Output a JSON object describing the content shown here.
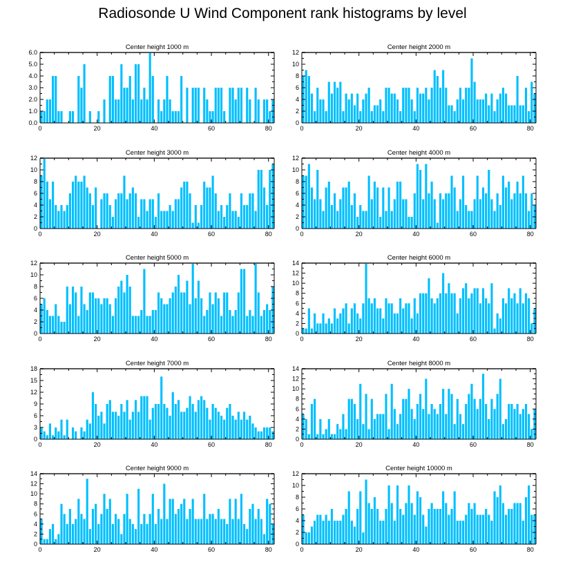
{
  "title": "Radiosonde U Wind Component rank histograms by level",
  "colors": {
    "bar": "#00bfff",
    "axis": "#000000",
    "frame_top": "#555555"
  },
  "chart_data": [
    {
      "type": "bar",
      "title": "Center height 1000 m",
      "xlim": [
        0,
        82
      ],
      "ylim": [
        0,
        6
      ],
      "xticks": [
        0,
        20,
        40,
        60,
        80
      ],
      "yticks": [
        "0.0",
        "1.0",
        "2.0",
        "3.0",
        "4.0",
        "5.0",
        "6.0"
      ],
      "values": [
        1,
        1,
        2,
        2,
        4,
        4,
        1,
        1,
        0,
        0,
        1,
        1,
        0,
        4,
        3,
        5,
        0,
        1,
        0,
        0,
        1,
        0,
        2,
        0,
        4,
        4,
        2,
        2,
        5,
        3,
        3,
        4,
        2,
        5,
        5,
        2,
        3,
        2,
        6,
        4,
        0,
        2,
        1,
        2,
        4,
        2,
        1,
        1,
        1,
        4,
        0,
        3,
        0,
        3,
        3,
        3,
        0,
        3,
        2,
        1,
        1,
        3,
        3,
        3,
        1,
        0,
        3,
        3,
        2,
        3,
        3,
        0,
        3,
        2,
        0,
        3,
        2,
        0,
        2,
        2,
        1,
        2
      ]
    },
    {
      "type": "bar",
      "title": "Center height 2000 m",
      "xlim": [
        0,
        82
      ],
      "ylim": [
        0,
        12
      ],
      "xticks": [
        0,
        20,
        40,
        60,
        80
      ],
      "yticks": [
        "0",
        "2",
        "4",
        "6",
        "8",
        "10",
        "12"
      ],
      "values": [
        8,
        9,
        8,
        5,
        2,
        6,
        4,
        4,
        2,
        7,
        5,
        7,
        6,
        7,
        2,
        5,
        4,
        5,
        3,
        5,
        2,
        4,
        5,
        6,
        2,
        3,
        3,
        4,
        2,
        6,
        6,
        5,
        5,
        4,
        2,
        6,
        6,
        6,
        4,
        2,
        6,
        5,
        5,
        6,
        4,
        6,
        9,
        8,
        6,
        9,
        6,
        3,
        3,
        2,
        4,
        6,
        4,
        6,
        6,
        11,
        7,
        4,
        4,
        4,
        5,
        3,
        5,
        2,
        4,
        5,
        6,
        5,
        3,
        3,
        3,
        8,
        3,
        3,
        6,
        2,
        7,
        5
      ]
    },
    {
      "type": "bar",
      "title": "Center height 3000 m",
      "xlim": [
        0,
        82
      ],
      "ylim": [
        0,
        12
      ],
      "xticks": [
        0,
        20,
        40,
        60,
        80
      ],
      "yticks": [
        "0",
        "2",
        "4",
        "6",
        "8",
        "10",
        "12"
      ],
      "values": [
        9,
        12,
        8,
        5,
        8,
        4,
        3,
        4,
        3,
        4,
        6,
        8,
        9,
        8,
        8,
        9,
        7,
        6,
        4,
        7,
        0,
        5,
        6,
        6,
        4,
        2,
        5,
        6,
        6,
        9,
        5,
        6,
        7,
        6,
        2,
        5,
        5,
        3,
        5,
        5,
        2,
        6,
        3,
        3,
        3,
        4,
        3,
        5,
        5,
        7,
        8,
        8,
        6,
        1,
        4,
        1,
        4,
        8,
        7,
        7,
        9,
        6,
        3,
        4,
        2,
        4,
        6,
        3,
        3,
        2,
        6,
        4,
        4,
        6,
        6,
        3,
        10,
        10,
        7,
        4,
        10,
        11
      ]
    },
    {
      "type": "bar",
      "title": "Center height 4000 m",
      "xlim": [
        0,
        82
      ],
      "ylim": [
        0,
        12
      ],
      "xticks": [
        0,
        20,
        40,
        60,
        80
      ],
      "yticks": [
        "0",
        "2",
        "4",
        "6",
        "8",
        "10",
        "12"
      ],
      "values": [
        9,
        9,
        11,
        7,
        5,
        10,
        5,
        3,
        7,
        8,
        4,
        6,
        3,
        5,
        7,
        7,
        8,
        4,
        6,
        2,
        4,
        3,
        3,
        9,
        5,
        8,
        7,
        2,
        7,
        3,
        7,
        3,
        5,
        8,
        8,
        5,
        5,
        2,
        2,
        6,
        11,
        10,
        5,
        11,
        6,
        8,
        5,
        1,
        6,
        5,
        6,
        6,
        9,
        7,
        3,
        5,
        9,
        4,
        3,
        3,
        5,
        9,
        5,
        7,
        6,
        10,
        5,
        3,
        6,
        4,
        9,
        7,
        8,
        5,
        6,
        8,
        6,
        9,
        6,
        3,
        6,
        4
      ]
    },
    {
      "type": "bar",
      "title": "Center height 5000 m",
      "xlim": [
        0,
        82
      ],
      "ylim": [
        0,
        12
      ],
      "xticks": [
        0,
        20,
        40,
        60,
        80
      ],
      "yticks": [
        "0",
        "2",
        "4",
        "6",
        "8",
        "10",
        "12"
      ],
      "values": [
        5,
        6,
        4,
        3,
        3,
        5,
        3,
        2,
        2,
        8,
        5,
        8,
        7,
        3,
        8,
        5,
        4,
        7,
        7,
        6,
        6,
        5,
        6,
        6,
        5,
        3,
        6,
        8,
        9,
        7,
        10,
        8,
        3,
        3,
        3,
        4,
        11,
        3,
        3,
        4,
        4,
        7,
        6,
        5,
        5,
        6,
        7,
        8,
        10,
        7,
        7,
        9,
        5,
        12,
        6,
        9,
        6,
        3,
        4,
        7,
        5,
        7,
        6,
        3,
        7,
        7,
        4,
        3,
        4,
        7,
        11,
        11,
        3,
        4,
        3,
        12,
        7,
        3,
        4,
        5,
        4,
        8
      ]
    },
    {
      "type": "bar",
      "title": "Center height 6000 m",
      "xlim": [
        0,
        82
      ],
      "ylim": [
        0,
        14
      ],
      "xticks": [
        0,
        20,
        40,
        60,
        80
      ],
      "yticks": [
        "0",
        "2",
        "4",
        "6",
        "8",
        "10",
        "12",
        "14"
      ],
      "values": [
        1,
        1,
        5,
        1,
        4,
        2,
        2,
        4,
        2,
        3,
        2,
        5,
        3,
        4,
        5,
        6,
        2,
        5,
        6,
        4,
        3,
        6,
        14,
        7,
        6,
        7,
        5,
        5,
        3,
        7,
        6,
        6,
        4,
        4,
        7,
        5,
        6,
        6,
        3,
        7,
        4,
        8,
        8,
        8,
        11,
        7,
        6,
        7,
        8,
        12,
        8,
        10,
        8,
        8,
        4,
        7,
        9,
        10,
        7,
        8,
        9,
        9,
        6,
        9,
        7,
        6,
        10,
        1,
        4,
        3,
        7,
        6,
        9,
        7,
        8,
        6,
        9,
        6,
        8,
        7,
        2,
        5
      ]
    },
    {
      "type": "bar",
      "title": "Center height 7000 m",
      "xlim": [
        0,
        82
      ],
      "ylim": [
        0,
        18
      ],
      "xticks": [
        0,
        20,
        40,
        60,
        80
      ],
      "yticks": [
        "0",
        "3",
        "6",
        "9",
        "12",
        "15",
        "18"
      ],
      "values": [
        3,
        2,
        1,
        4,
        1,
        3,
        2,
        5,
        1,
        5,
        0,
        3,
        2,
        0,
        3,
        2,
        5,
        4,
        12,
        9,
        6,
        7,
        4,
        9,
        10,
        7,
        7,
        6,
        9,
        7,
        10,
        5,
        7,
        10,
        7,
        11,
        11,
        11,
        5,
        8,
        9,
        9,
        16,
        9,
        8,
        6,
        12,
        9,
        10,
        7,
        7,
        8,
        11,
        9,
        7,
        10,
        11,
        10,
        8,
        5,
        9,
        8,
        7,
        6,
        5,
        8,
        9,
        6,
        5,
        7,
        5,
        7,
        5,
        6,
        4,
        3,
        2,
        2,
        3,
        3,
        3,
        2
      ]
    },
    {
      "type": "bar",
      "title": "Center height 8000 m",
      "xlim": [
        0,
        82
      ],
      "ylim": [
        0,
        14
      ],
      "xticks": [
        0,
        20,
        40,
        60,
        80
      ],
      "yticks": [
        "0",
        "2",
        "4",
        "6",
        "8",
        "10",
        "12",
        "14"
      ],
      "values": [
        5,
        4,
        1,
        7,
        8,
        1,
        4,
        1,
        2,
        4,
        1,
        1,
        3,
        2,
        5,
        2,
        8,
        8,
        7,
        4,
        11,
        3,
        9,
        2,
        8,
        4,
        5,
        5,
        5,
        9,
        2,
        11,
        6,
        3,
        5,
        8,
        8,
        10,
        6,
        4,
        7,
        9,
        6,
        12,
        5,
        7,
        6,
        5,
        7,
        10,
        5,
        10,
        9,
        3,
        8,
        5,
        3,
        7,
        9,
        11,
        8,
        6,
        8,
        13,
        7,
        4,
        8,
        6,
        9,
        12,
        3,
        4,
        7,
        7,
        6,
        7,
        5,
        6,
        7,
        5,
        2,
        6
      ]
    },
    {
      "type": "bar",
      "title": "Center height 9000 m",
      "xlim": [
        0,
        82
      ],
      "ylim": [
        0,
        14
      ],
      "xticks": [
        0,
        20,
        40,
        60,
        80
      ],
      "yticks": [
        "0",
        "2",
        "4",
        "6",
        "8",
        "10",
        "12",
        "14"
      ],
      "values": [
        5,
        1,
        1,
        3,
        4,
        1,
        2,
        8,
        6,
        4,
        7,
        4,
        5,
        9,
        6,
        5,
        13,
        3,
        7,
        8,
        4,
        6,
        10,
        7,
        9,
        4,
        6,
        5,
        2,
        6,
        10,
        5,
        4,
        3,
        11,
        4,
        6,
        4,
        6,
        10,
        4,
        7,
        5,
        12,
        5,
        9,
        9,
        6,
        7,
        8,
        9,
        5,
        7,
        9,
        5,
        5,
        5,
        10,
        5,
        6,
        6,
        5,
        7,
        5,
        5,
        4,
        9,
        5,
        9,
        5,
        10,
        4,
        3,
        7,
        8,
        5,
        7,
        5,
        2,
        9,
        8,
        4
      ]
    },
    {
      "type": "bar",
      "title": "Center height 10000 m",
      "xlim": [
        0,
        82
      ],
      "ylim": [
        0,
        12
      ],
      "xticks": [
        0,
        20,
        40,
        60,
        80
      ],
      "yticks": [
        "0",
        "2",
        "4",
        "6",
        "8",
        "10",
        "12"
      ],
      "values": [
        5,
        2,
        2,
        3,
        4,
        5,
        5,
        4,
        5,
        4,
        6,
        4,
        4,
        4,
        5,
        6,
        9,
        4,
        3,
        6,
        9,
        2,
        11,
        7,
        6,
        8,
        6,
        4,
        4,
        6,
        10,
        7,
        4,
        10,
        6,
        5,
        7,
        10,
        7,
        5,
        9,
        8,
        5,
        3,
        6,
        7,
        6,
        6,
        6,
        9,
        7,
        5,
        6,
        9,
        4,
        4,
        4,
        5,
        7,
        6,
        7,
        5,
        5,
        5,
        6,
        5,
        4,
        9,
        8,
        10,
        7,
        5,
        6,
        6,
        7,
        7,
        7,
        4,
        8,
        10,
        5,
        5
      ]
    }
  ]
}
